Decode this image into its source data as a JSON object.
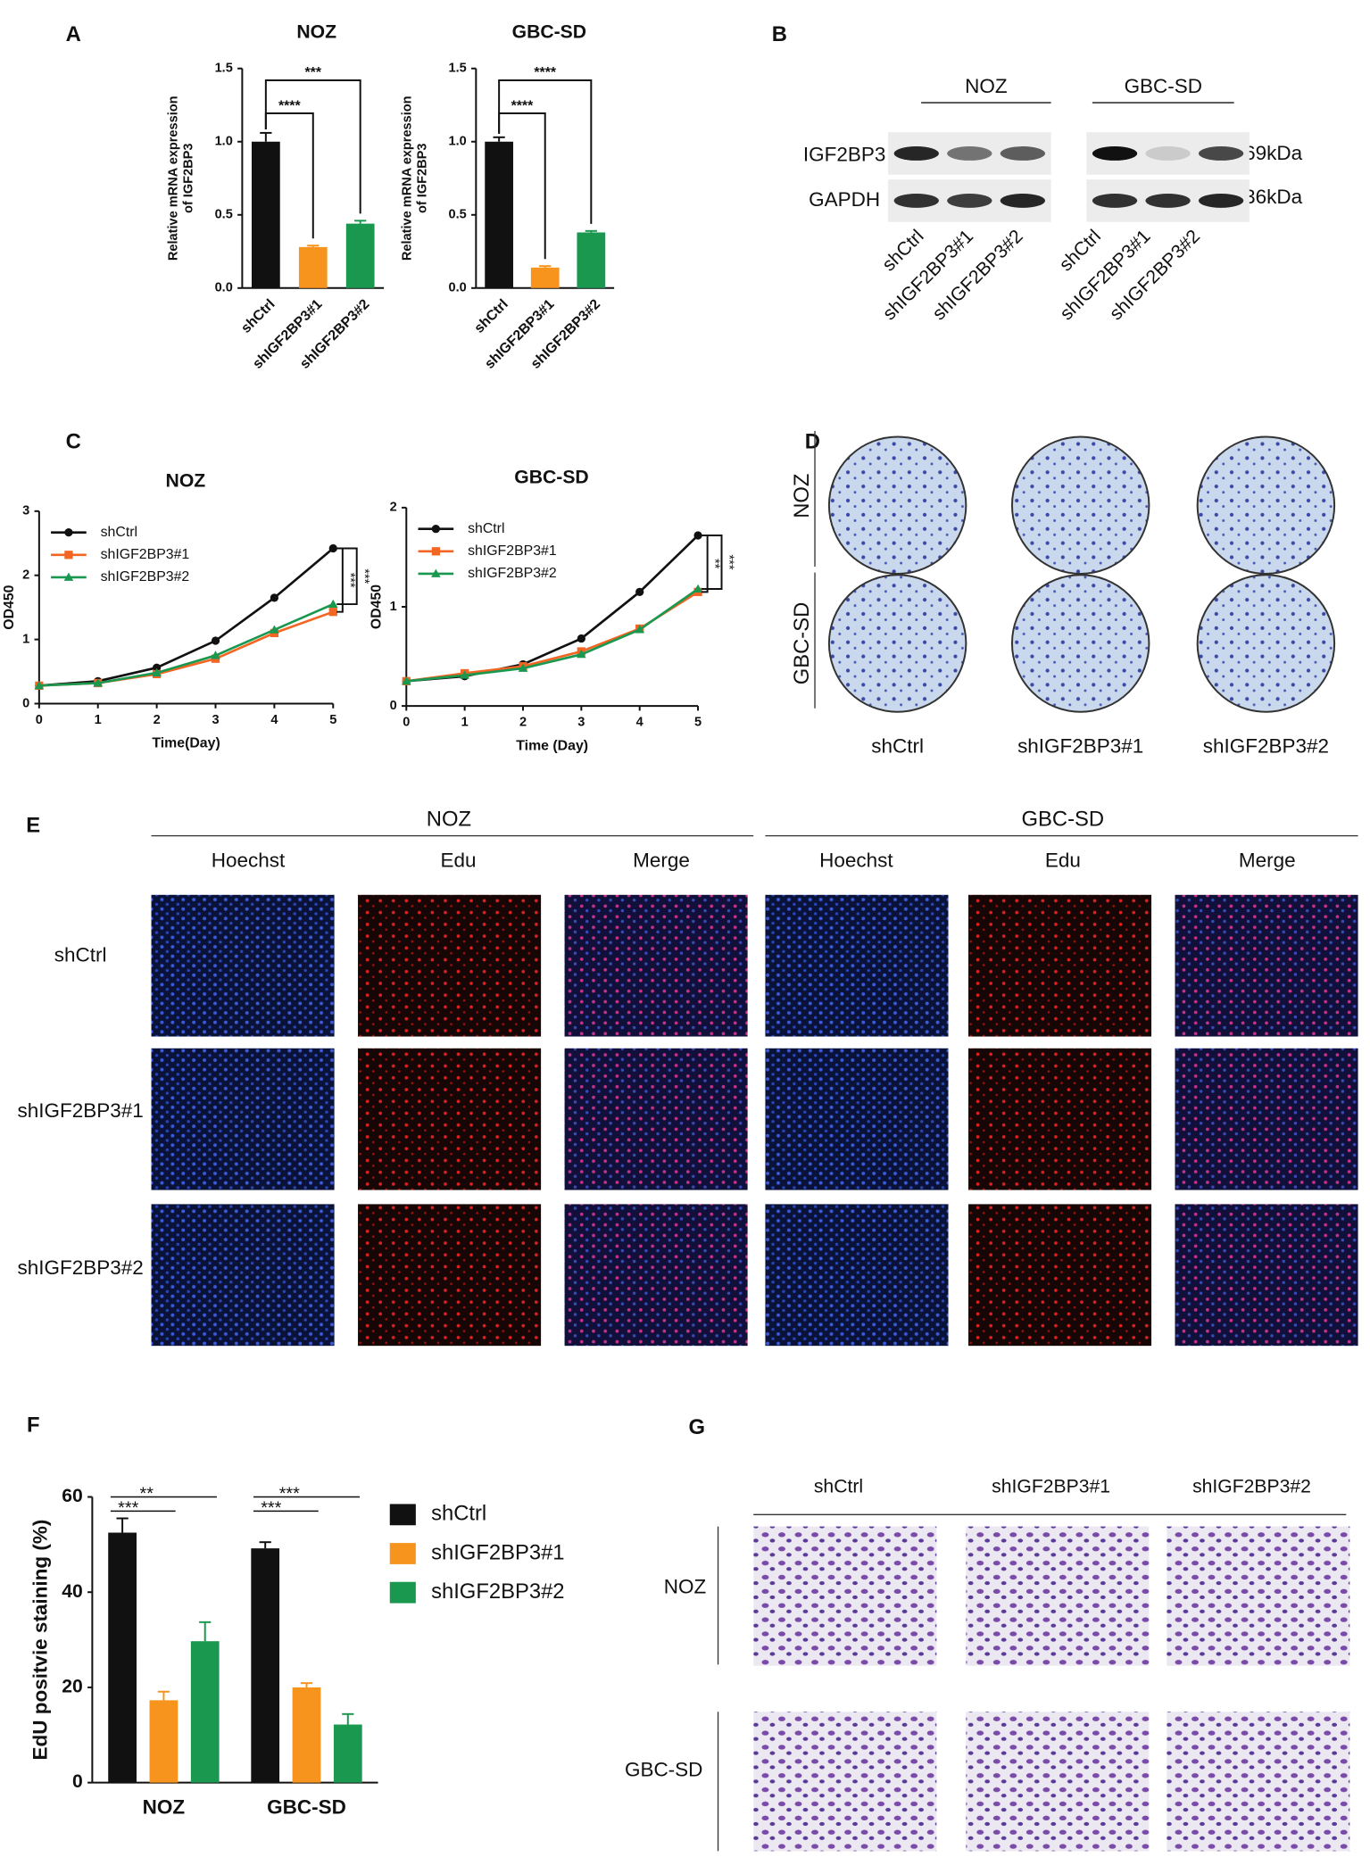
{
  "panel_labels": [
    "A",
    "B",
    "C",
    "D",
    "E",
    "F",
    "G"
  ],
  "western_blot": {
    "groups": [
      "NOZ",
      "GBC-SD"
    ],
    "bands": [
      "IGF2BP3",
      "GAPDH"
    ],
    "sizes": [
      "-69kDa",
      "-36kDa"
    ],
    "lanes": [
      "shCtrl",
      "shIGF2BP3#1",
      "shIGF2BP3#2"
    ]
  },
  "colony": {
    "rows": [
      "NOZ",
      "GBC-SD"
    ],
    "columns": [
      "shCtrl",
      "shIGF2BP3#1",
      "shIGF2BP3#2"
    ]
  },
  "edu_images": {
    "groups": [
      "NOZ",
      "GBC-SD"
    ],
    "channels": [
      "Hoechst",
      "Edu",
      "Merge"
    ],
    "rows": [
      "shCtrl",
      "shIGF2BP3#1",
      "shIGF2BP3#2"
    ]
  },
  "transwell": {
    "columns": [
      "shCtrl",
      "shIGF2BP3#1",
      "shIGF2BP3#2"
    ],
    "rows": [
      "NOZ",
      "GBC-SD"
    ]
  },
  "chart_data": [
    {
      "type": "bar",
      "title": "NOZ",
      "ylabel": [
        "Relative mRNA expression",
        "of IGF2BP3"
      ],
      "categories": [
        "shCtrl",
        "shIGF2BP3#1",
        "shIGF2BP3#2"
      ],
      "values": [
        1.0,
        0.28,
        0.44
      ],
      "errors": [
        0.06,
        0.01,
        0.02
      ],
      "colors": [
        "#111111",
        "#f7941d",
        "#1b9850"
      ],
      "ylim": [
        0,
        1.5
      ],
      "yticks": [
        {
          "value": 0,
          "label": "0.0"
        },
        0.5,
        {
          "value": 1,
          "label": "1.0"
        },
        1.5
      ],
      "annotations": [
        "****",
        "***"
      ]
    },
    {
      "type": "bar",
      "title": "GBC-SD",
      "ylabel": [
        "Relative mRNA expression",
        "of IGF2BP3"
      ],
      "categories": [
        "shCtrl",
        "shIGF2BP3#1",
        "shIGF2BP3#2"
      ],
      "values": [
        1.0,
        0.14,
        0.38
      ],
      "errors": [
        0.03,
        0.01,
        0.01
      ],
      "colors": [
        "#111111",
        "#f7941d",
        "#1b9850"
      ],
      "ylim": [
        0,
        1.5
      ],
      "yticks": [
        {
          "value": 0,
          "label": "0.0"
        },
        0.5,
        {
          "value": 1,
          "label": "1.0"
        },
        1.5
      ],
      "annotations": [
        "****",
        "****"
      ]
    },
    {
      "type": "line",
      "title": "NOZ",
      "xlabel": "Time(Day)",
      "ylabel": "OD450",
      "legend": "upper left",
      "x": [
        0,
        1,
        2,
        3,
        4,
        5
      ],
      "xlim": [
        0,
        5
      ],
      "xticks": [
        0,
        1,
        2,
        3,
        4,
        5
      ],
      "ylim": [
        0,
        3
      ],
      "yticks": [
        0,
        1,
        2,
        3
      ],
      "series": [
        {
          "name": "shCtrl",
          "color": "#111111",
          "values": [
            0.28,
            0.35,
            0.56,
            0.98,
            1.65,
            2.42
          ]
        },
        {
          "name": "shIGF2BP3#1",
          "color": "#f26522",
          "values": [
            0.28,
            0.32,
            0.46,
            0.7,
            1.1,
            1.43
          ]
        },
        {
          "name": "shIGF2BP3#2",
          "color": "#1b9850",
          "values": [
            0.28,
            0.32,
            0.48,
            0.75,
            1.15,
            1.55
          ]
        }
      ],
      "annotations": [
        "***",
        "***"
      ]
    },
    {
      "type": "line",
      "title": "GBC-SD",
      "xlabel": "Time (Day)",
      "ylabel": "OD450",
      "legend": "upper left",
      "x": [
        0,
        1,
        2,
        3,
        4,
        5
      ],
      "xlim": [
        0,
        5
      ],
      "xticks": [
        0,
        1,
        2,
        3,
        4,
        5
      ],
      "ylim": [
        0,
        2
      ],
      "yticks": [
        0,
        1,
        2
      ],
      "series": [
        {
          "name": "shCtrl",
          "color": "#111111",
          "values": [
            0.25,
            0.3,
            0.42,
            0.68,
            1.15,
            1.72
          ]
        },
        {
          "name": "shIGF2BP3#1",
          "color": "#f26522",
          "values": [
            0.25,
            0.33,
            0.4,
            0.55,
            0.78,
            1.15
          ]
        },
        {
          "name": "shIGF2BP3#2",
          "color": "#1b9850",
          "values": [
            0.25,
            0.31,
            0.38,
            0.52,
            0.77,
            1.18
          ]
        }
      ],
      "annotations": [
        "**",
        "***"
      ]
    },
    {
      "type": "bar",
      "ylabel": "EdU positvie staining (%)",
      "legend": "right",
      "categories": [
        "NOZ",
        "GBC-SD"
      ],
      "ylim": [
        0,
        60
      ],
      "yticks": [
        0,
        20,
        40,
        60
      ],
      "series": [
        {
          "name": "shCtrl",
          "color": "#111111",
          "values": [
            52.5,
            49.2
          ],
          "errors": [
            3,
            1.3
          ]
        },
        {
          "name": "shIGF2BP3#1",
          "color": "#f7941d",
          "values": [
            17.3,
            20
          ],
          "errors": [
            1.8,
            0.9
          ]
        },
        {
          "name": "shIGF2BP3#2",
          "color": "#1b9850",
          "values": [
            29.7,
            12.2
          ],
          "errors": [
            4,
            2.2
          ]
        }
      ],
      "annotations": [
        "***",
        "**",
        "***",
        "***"
      ]
    }
  ]
}
